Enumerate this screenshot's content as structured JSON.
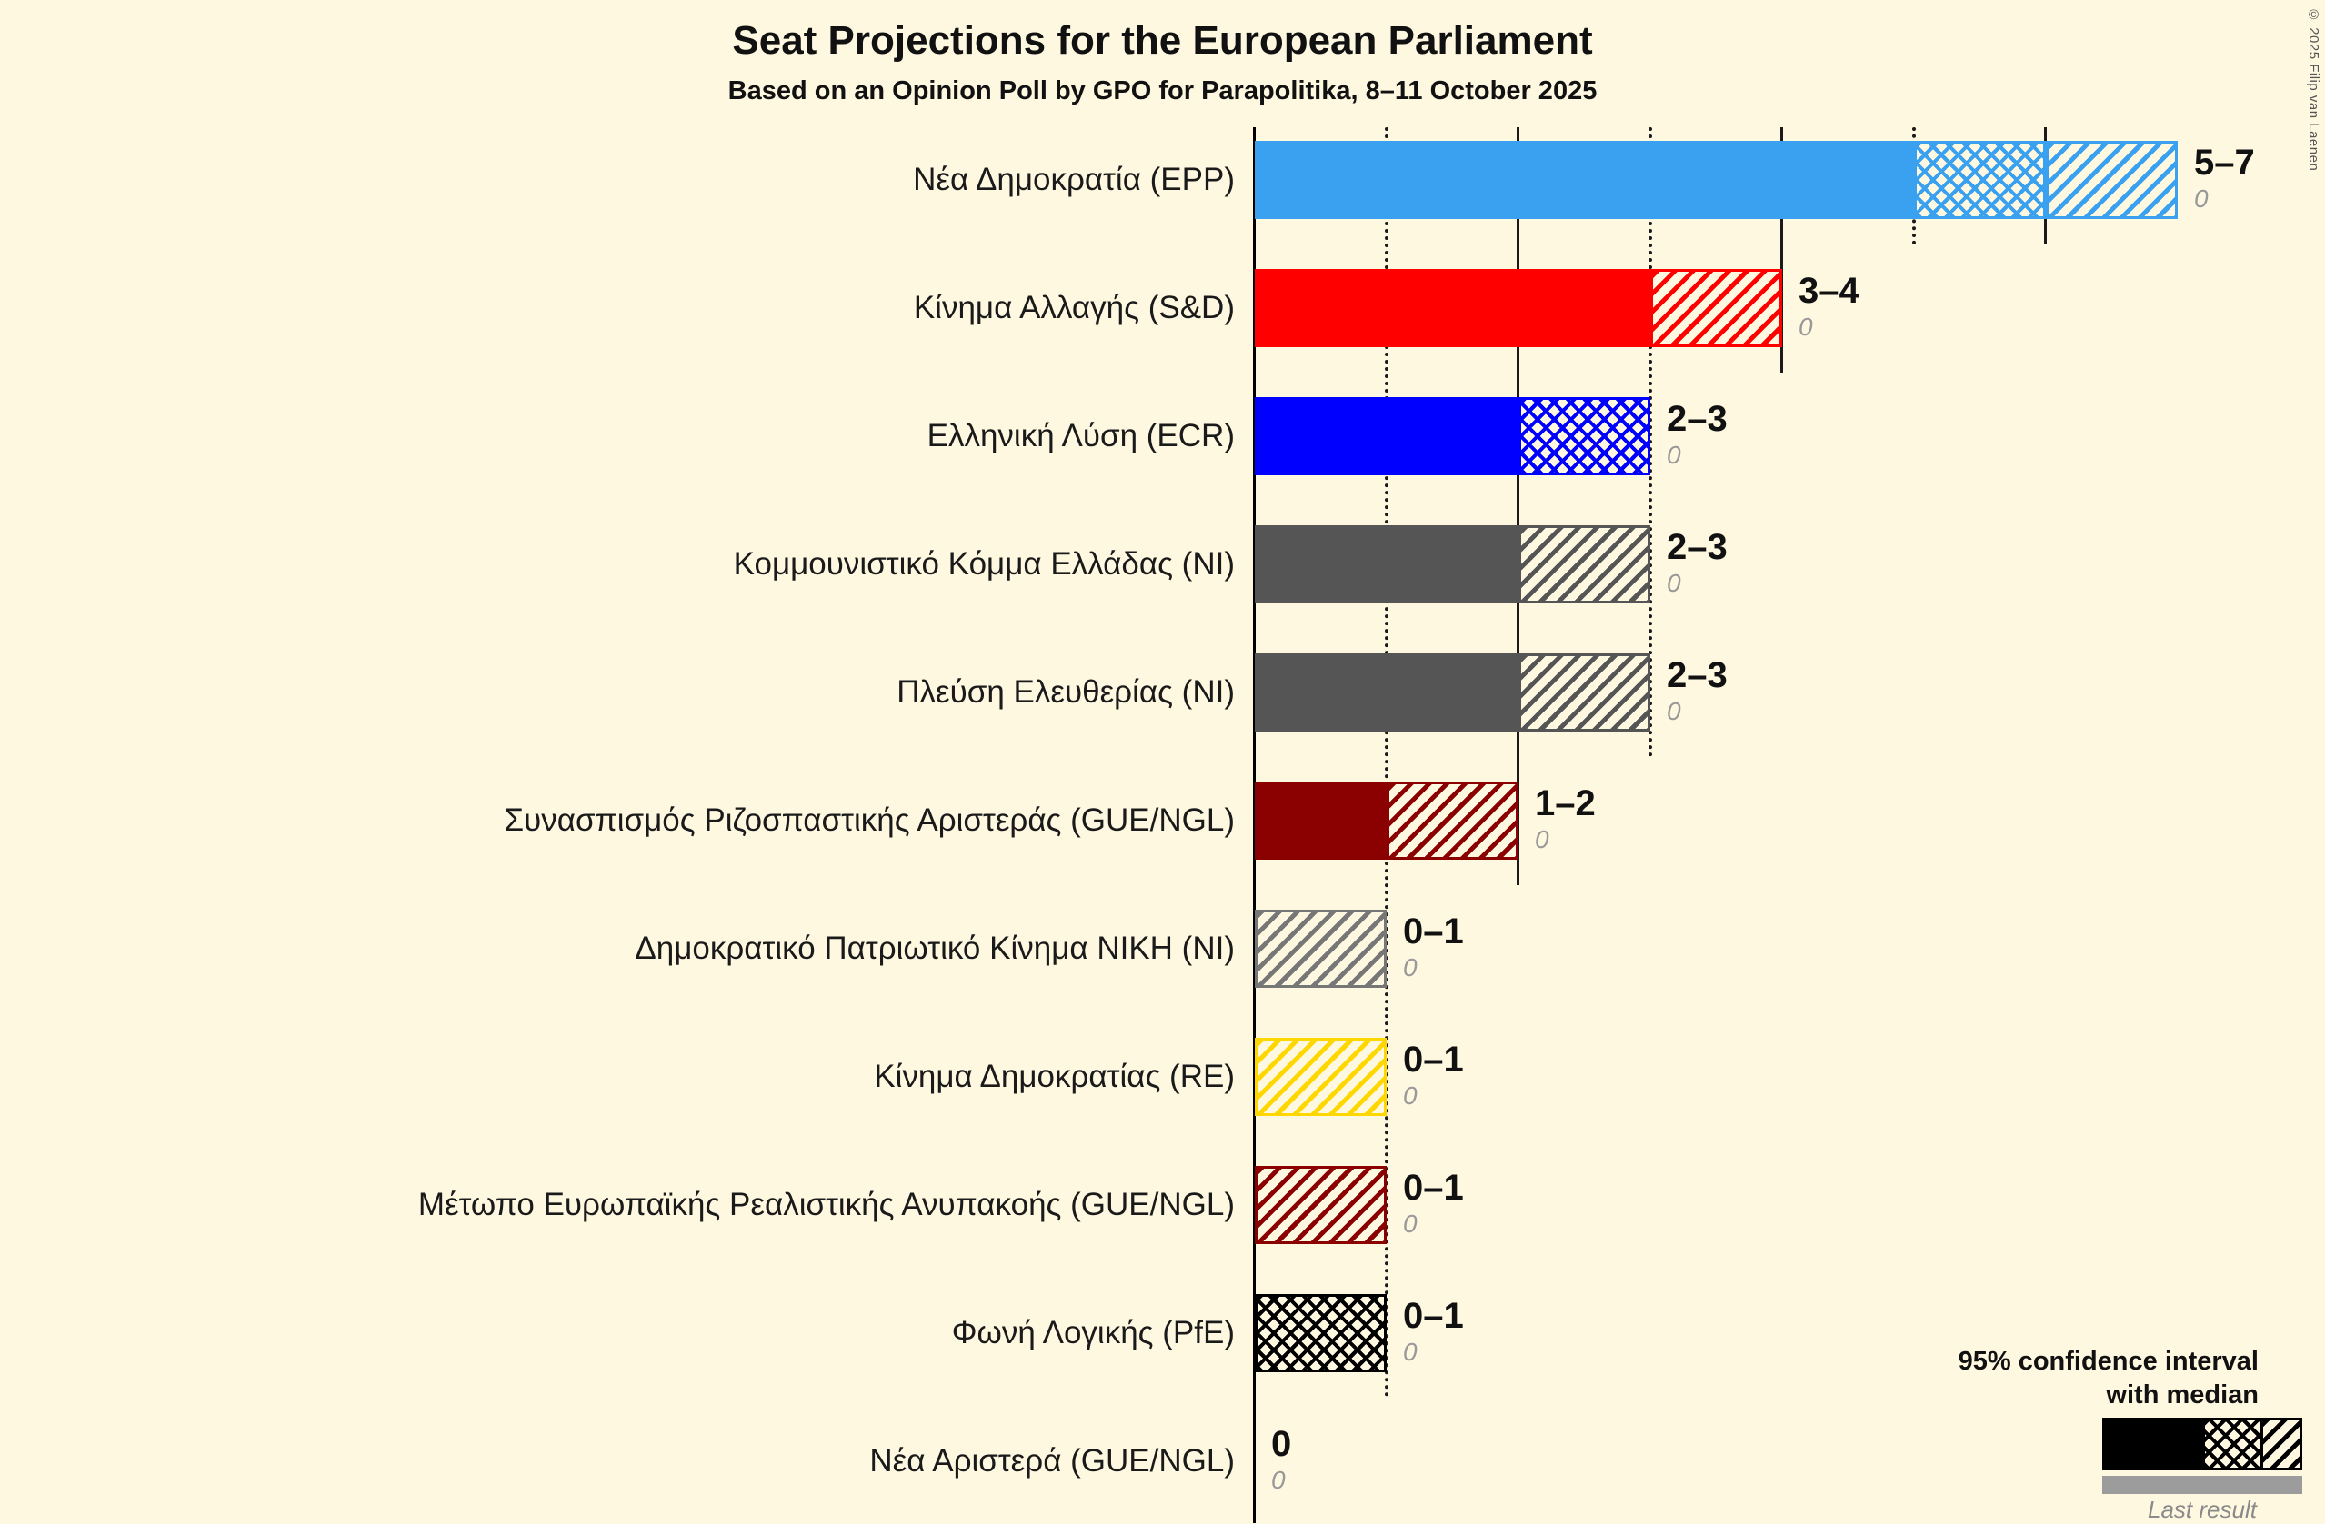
{
  "title": "Seat Projections for the European Parliament",
  "subtitle": "Based on an Opinion Poll by GPO for Parapolitika, 8–11 October 2025",
  "copyright": "© 2025 Filip van Laenen",
  "legend": {
    "line1": "95% confidence interval",
    "line2": "with median",
    "last_result": "Last result"
  },
  "chart_data": {
    "type": "bar",
    "orientation": "horizontal",
    "unit": "seats",
    "x_axis": {
      "min": 0,
      "max": 7,
      "gridlines": [
        1,
        2,
        3,
        4,
        5,
        6
      ]
    },
    "parties": [
      {
        "label": "Νέα Δημοκρατία (EPP)",
        "color": "#3AA1F0",
        "ci_low": 5,
        "median": 6,
        "ci_high": 7,
        "range_label": "5–7",
        "last_result": "0"
      },
      {
        "label": "Κίνημα Αλλαγής (S&D)",
        "color": "#FF0000",
        "ci_low": 3,
        "median": 3,
        "ci_high": 4,
        "range_label": "3–4",
        "last_result": "0"
      },
      {
        "label": "Ελληνική Λύση (ECR)",
        "color": "#0000FF",
        "ci_low": 2,
        "median": 3,
        "ci_high": 3,
        "range_label": "2–3",
        "last_result": "0"
      },
      {
        "label": "Κομμουνιστικό Κόμμα Ελλάδας (NI)",
        "color": "#555555",
        "ci_low": 2,
        "median": 2,
        "ci_high": 3,
        "range_label": "2–3",
        "last_result": "0"
      },
      {
        "label": "Πλεύση Ελευθερίας (NI)",
        "color": "#555555",
        "ci_low": 2,
        "median": 2,
        "ci_high": 3,
        "range_label": "2–3",
        "last_result": "0"
      },
      {
        "label": "Συνασπισμός Ριζοσπαστικής Αριστεράς (GUE/NGL)",
        "color": "#8B0000",
        "ci_low": 1,
        "median": 1,
        "ci_high": 2,
        "range_label": "1–2",
        "last_result": "0"
      },
      {
        "label": "Δημοκρατικό Πατριωτικό Κίνημα ΝΙΚΗ (NI)",
        "color": "#777777",
        "ci_low": 0,
        "median": 0,
        "ci_high": 1,
        "range_label": "0–1",
        "last_result": "0"
      },
      {
        "label": "Κίνημα Δημοκρατίας (RE)",
        "color": "#FFD700",
        "ci_low": 0,
        "median": 0,
        "ci_high": 1,
        "range_label": "0–1",
        "last_result": "0"
      },
      {
        "label": "Μέτωπο Ευρωπαϊκής Ρεαλιστικής Ανυπακοής (GUE/NGL)",
        "color": "#8B0000",
        "ci_low": 0,
        "median": 0,
        "ci_high": 1,
        "range_label": "0–1",
        "last_result": "0"
      },
      {
        "label": "Φωνή Λογικής (PfE)",
        "color": "#000000",
        "ci_low": 0,
        "median": 1,
        "ci_high": 1,
        "range_label": "0–1",
        "last_result": "0"
      },
      {
        "label": "Νέα Αριστερά (GUE/NGL)",
        "color": "#8B0000",
        "ci_low": 0,
        "median": 0,
        "ci_high": 0,
        "range_label": "0",
        "last_result": "0"
      }
    ]
  }
}
